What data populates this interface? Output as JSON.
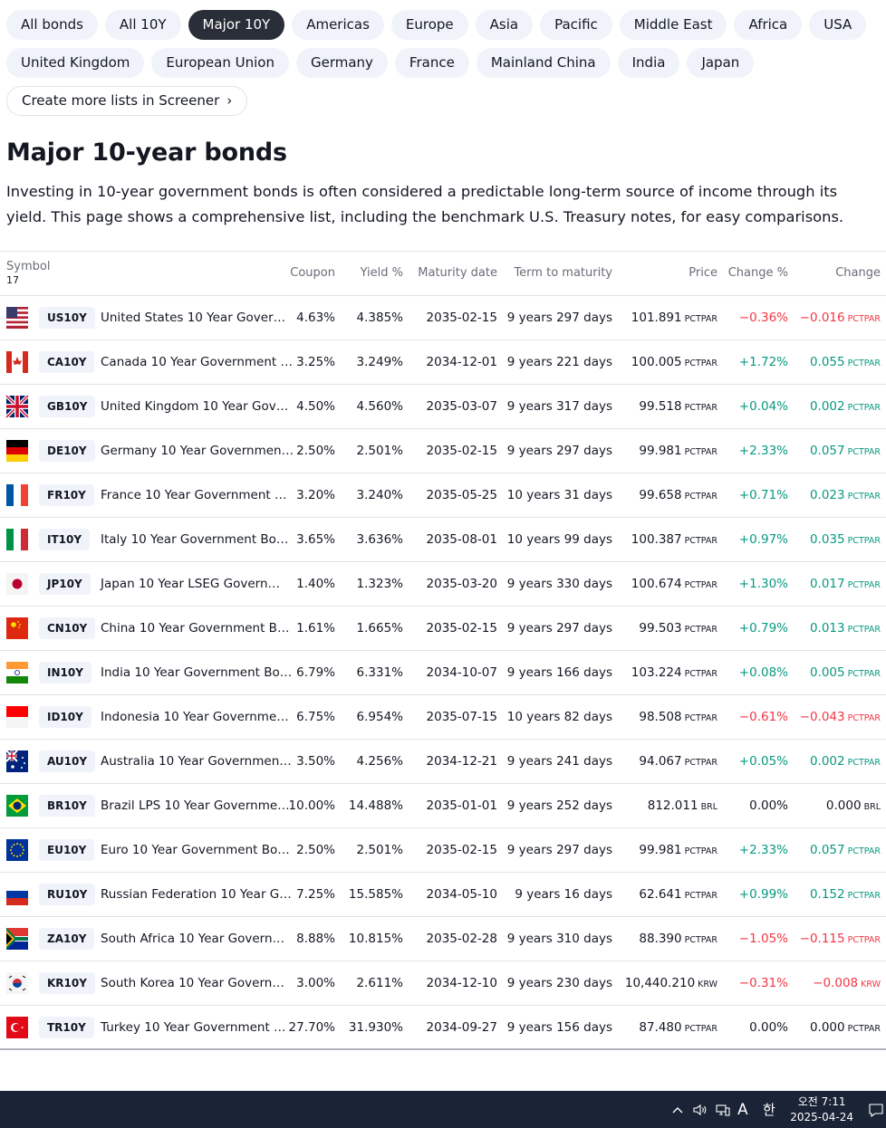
{
  "filters": {
    "row1": [
      "All bonds",
      "All 10Y",
      "Major 10Y",
      "Americas",
      "Europe",
      "Asia",
      "Pacific",
      "Middle East",
      "Africa",
      "USA"
    ],
    "row2": [
      "United Kingdom",
      "European Union",
      "Germany",
      "France",
      "Mainland China",
      "India",
      "Japan"
    ],
    "active": "Major 10Y",
    "screener_link": "Create more lists in Screener"
  },
  "page": {
    "title": "Major 10-year bonds",
    "description": "Investing in 10-year government bonds is often considered a predictable long-term source of income through its yield. This page shows a comprehensive list, including the benchmark U.S. Treasury notes, for easy comparisons."
  },
  "table": {
    "headers": {
      "symbol": "Symbol",
      "count": "17",
      "coupon": "Coupon",
      "yield": "Yield %",
      "maturity": "Maturity date",
      "term": "Term to maturity",
      "price": "Price",
      "change_pct": "Change %",
      "change": "Change"
    },
    "rows": [
      {
        "flag": "us",
        "ticker": "US10Y",
        "name": "United States 10 Year Gover…",
        "coupon": "4.63%",
        "yield": "4.385%",
        "maturity": "2035-02-15",
        "term": "9 years 297 days",
        "price": "101.891",
        "price_unit": "PCTPAR",
        "change_pct": "−0.36%",
        "change": "−0.016",
        "change_unit": "PCTPAR",
        "dir": "neg"
      },
      {
        "flag": "ca",
        "ticker": "CA10Y",
        "name": "Canada 10 Year Government …",
        "coupon": "3.25%",
        "yield": "3.249%",
        "maturity": "2034-12-01",
        "term": "9 years 221 days",
        "price": "100.005",
        "price_unit": "PCTPAR",
        "change_pct": "+1.72%",
        "change": "0.055",
        "change_unit": "PCTPAR",
        "dir": "pos"
      },
      {
        "flag": "gb",
        "ticker": "GB10Y",
        "name": "United Kingdom 10 Year Gov…",
        "coupon": "4.50%",
        "yield": "4.560%",
        "maturity": "2035-03-07",
        "term": "9 years 317 days",
        "price": "99.518",
        "price_unit": "PCTPAR",
        "change_pct": "+0.04%",
        "change": "0.002",
        "change_unit": "PCTPAR",
        "dir": "pos"
      },
      {
        "flag": "de",
        "ticker": "DE10Y",
        "name": "Germany 10 Year Governmen…",
        "coupon": "2.50%",
        "yield": "2.501%",
        "maturity": "2035-02-15",
        "term": "9 years 297 days",
        "price": "99.981",
        "price_unit": "PCTPAR",
        "change_pct": "+2.33%",
        "change": "0.057",
        "change_unit": "PCTPAR",
        "dir": "pos"
      },
      {
        "flag": "fr",
        "ticker": "FR10Y",
        "name": "France 10 Year Government …",
        "coupon": "3.20%",
        "yield": "3.240%",
        "maturity": "2035-05-25",
        "term": "10 years 31 days",
        "price": "99.658",
        "price_unit": "PCTPAR",
        "change_pct": "+0.71%",
        "change": "0.023",
        "change_unit": "PCTPAR",
        "dir": "pos"
      },
      {
        "flag": "it",
        "ticker": "IT10Y",
        "name": "Italy 10 Year Government Bo…",
        "coupon": "3.65%",
        "yield": "3.636%",
        "maturity": "2035-08-01",
        "term": "10 years 99 days",
        "price": "100.387",
        "price_unit": "PCTPAR",
        "change_pct": "+0.97%",
        "change": "0.035",
        "change_unit": "PCTPAR",
        "dir": "pos"
      },
      {
        "flag": "jp",
        "ticker": "JP10Y",
        "name": "Japan 10 Year LSEG Govern…",
        "coupon": "1.40%",
        "yield": "1.323%",
        "maturity": "2035-03-20",
        "term": "9 years 330 days",
        "price": "100.674",
        "price_unit": "PCTPAR",
        "change_pct": "+1.30%",
        "change": "0.017",
        "change_unit": "PCTPAR",
        "dir": "pos"
      },
      {
        "flag": "cn",
        "ticker": "CN10Y",
        "name": "China 10 Year Government B…",
        "coupon": "1.61%",
        "yield": "1.665%",
        "maturity": "2035-02-15",
        "term": "9 years 297 days",
        "price": "99.503",
        "price_unit": "PCTPAR",
        "change_pct": "+0.79%",
        "change": "0.013",
        "change_unit": "PCTPAR",
        "dir": "pos"
      },
      {
        "flag": "in",
        "ticker": "IN10Y",
        "name": "India 10 Year Government Bo…",
        "coupon": "6.79%",
        "yield": "6.331%",
        "maturity": "2034-10-07",
        "term": "9 years 166 days",
        "price": "103.224",
        "price_unit": "PCTPAR",
        "change_pct": "+0.08%",
        "change": "0.005",
        "change_unit": "PCTPAR",
        "dir": "pos"
      },
      {
        "flag": "id",
        "ticker": "ID10Y",
        "name": "Indonesia 10 Year Governme…",
        "coupon": "6.75%",
        "yield": "6.954%",
        "maturity": "2035-07-15",
        "term": "10 years 82 days",
        "price": "98.508",
        "price_unit": "PCTPAR",
        "change_pct": "−0.61%",
        "change": "−0.043",
        "change_unit": "PCTPAR",
        "dir": "neg"
      },
      {
        "flag": "au",
        "ticker": "AU10Y",
        "name": "Australia 10 Year Governmen…",
        "coupon": "3.50%",
        "yield": "4.256%",
        "maturity": "2034-12-21",
        "term": "9 years 241 days",
        "price": "94.067",
        "price_unit": "PCTPAR",
        "change_pct": "+0.05%",
        "change": "0.002",
        "change_unit": "PCTPAR",
        "dir": "pos"
      },
      {
        "flag": "br",
        "ticker": "BR10Y",
        "name": "Brazil LPS 10 Year Governme…",
        "coupon": "10.00%",
        "yield": "14.488%",
        "maturity": "2035-01-01",
        "term": "9 years 252 days",
        "price": "812.011",
        "price_unit": "BRL",
        "change_pct": "0.00%",
        "change": "0.000",
        "change_unit": "BRL",
        "dir": "neu"
      },
      {
        "flag": "eu",
        "ticker": "EU10Y",
        "name": "Euro 10 Year Government Bo…",
        "coupon": "2.50%",
        "yield": "2.501%",
        "maturity": "2035-02-15",
        "term": "9 years 297 days",
        "price": "99.981",
        "price_unit": "PCTPAR",
        "change_pct": "+2.33%",
        "change": "0.057",
        "change_unit": "PCTPAR",
        "dir": "pos"
      },
      {
        "flag": "ru",
        "ticker": "RU10Y",
        "name": "Russian Federation 10 Year G…",
        "coupon": "7.25%",
        "yield": "15.585%",
        "maturity": "2034-05-10",
        "term": "9 years 16 days",
        "price": "62.641",
        "price_unit": "PCTPAR",
        "change_pct": "+0.99%",
        "change": "0.152",
        "change_unit": "PCTPAR",
        "dir": "pos"
      },
      {
        "flag": "za",
        "ticker": "ZA10Y",
        "name": "South Africa 10 Year Govern…",
        "coupon": "8.88%",
        "yield": "10.815%",
        "maturity": "2035-02-28",
        "term": "9 years 310 days",
        "price": "88.390",
        "price_unit": "PCTPAR",
        "change_pct": "−1.05%",
        "change": "−0.115",
        "change_unit": "PCTPAR",
        "dir": "neg"
      },
      {
        "flag": "kr",
        "ticker": "KR10Y",
        "name": "South Korea 10 Year Govern…",
        "coupon": "3.00%",
        "yield": "2.611%",
        "maturity": "2034-12-10",
        "term": "9 years 230 days",
        "price": "10,440.210",
        "price_unit": "KRW",
        "change_pct": "−0.31%",
        "change": "−0.008",
        "change_unit": "KRW",
        "dir": "neg"
      },
      {
        "flag": "tr",
        "ticker": "TR10Y",
        "name": "Turkey 10 Year Government …",
        "coupon": "27.70%",
        "yield": "31.930%",
        "maturity": "2034-09-27",
        "term": "9 years 156 days",
        "price": "87.480",
        "price_unit": "PCTPAR",
        "change_pct": "0.00%",
        "change": "0.000",
        "change_unit": "PCTPAR",
        "dir": "neu"
      }
    ]
  },
  "colors": {
    "positive": "#089981",
    "negative": "#f23645",
    "active_chip": "#2a2e39",
    "taskbar": "#1a2436"
  },
  "taskbar": {
    "ime_letter": "A",
    "ime_hangul": "한",
    "time": "오전 7:11",
    "date": "2025-04-24",
    "icons": [
      "chevron-up-icon",
      "speaker-icon",
      "network-icon",
      "notification-icon"
    ]
  }
}
